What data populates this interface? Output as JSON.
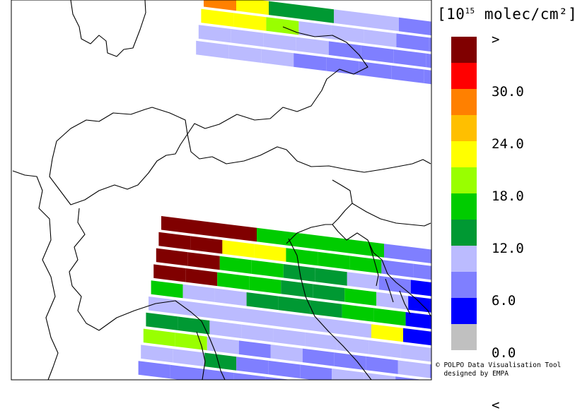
{
  "legend": {
    "unit_prefix": "[10",
    "unit_exp": "15",
    "unit_suffix": " molec/cm²]",
    "colors": [
      "#800000",
      "#ff0000",
      "#ff8000",
      "#ffbf00",
      "#ffff00",
      "#99ff00",
      "#00cc00",
      "#009933",
      "#bbbbff",
      "#7f7fff",
      "#0000ff",
      "#c0c0c0"
    ],
    "ticks": [
      ">",
      "30.0",
      "24.0",
      "18.0",
      "12.0",
      "6.0",
      "0.0",
      "<"
    ]
  },
  "credit": {
    "line1": "© POLPO Data Visualisation Tool",
    "line2": "  designed by EMPA"
  },
  "swaths": [
    {
      "rows": [
        [
          0,
          0,
          0,
          6,
          6,
          6,
          6,
          9,
          9,
          9,
          9
        ],
        [
          0,
          0,
          4,
          4,
          6,
          6,
          6,
          9,
          9,
          9,
          9
        ],
        [
          0,
          0,
          6,
          6,
          7,
          7,
          8,
          9,
          10,
          10,
          10,
          9
        ],
        [
          0,
          0,
          6,
          6,
          7,
          7,
          6,
          8,
          10,
          10,
          10,
          9
        ],
        [
          6,
          8,
          8,
          7,
          7,
          7,
          6,
          6,
          10,
          10,
          10,
          10,
          10
        ],
        [
          8,
          8,
          8,
          8,
          8,
          8,
          8,
          4,
          10,
          10,
          10,
          10,
          10
        ],
        [
          7,
          7,
          8,
          8,
          8,
          8,
          8,
          8,
          8,
          7,
          9,
          9,
          9
        ],
        [
          5,
          5,
          8,
          9,
          8,
          9,
          9,
          9,
          8,
          9,
          7,
          9,
          9
        ],
        [
          8,
          8,
          7,
          9,
          9,
          9,
          8,
          8,
          9,
          9,
          9,
          9,
          9
        ],
        [
          9,
          9,
          9,
          9,
          9,
          9,
          9,
          9,
          9,
          9,
          10,
          10,
          10
        ]
      ]
    },
    {
      "rows": [
        [
          2,
          4,
          7,
          7,
          8,
          8,
          9,
          9,
          9,
          9,
          9
        ],
        [
          4,
          4,
          5,
          8,
          8,
          8,
          9,
          9,
          9,
          9,
          9
        ],
        [
          8,
          8,
          8,
          8,
          9,
          9,
          9,
          9,
          9,
          9,
          9
        ],
        [
          8,
          8,
          8,
          9,
          9,
          9,
          9,
          9,
          9,
          9,
          9
        ]
      ]
    }
  ]
}
